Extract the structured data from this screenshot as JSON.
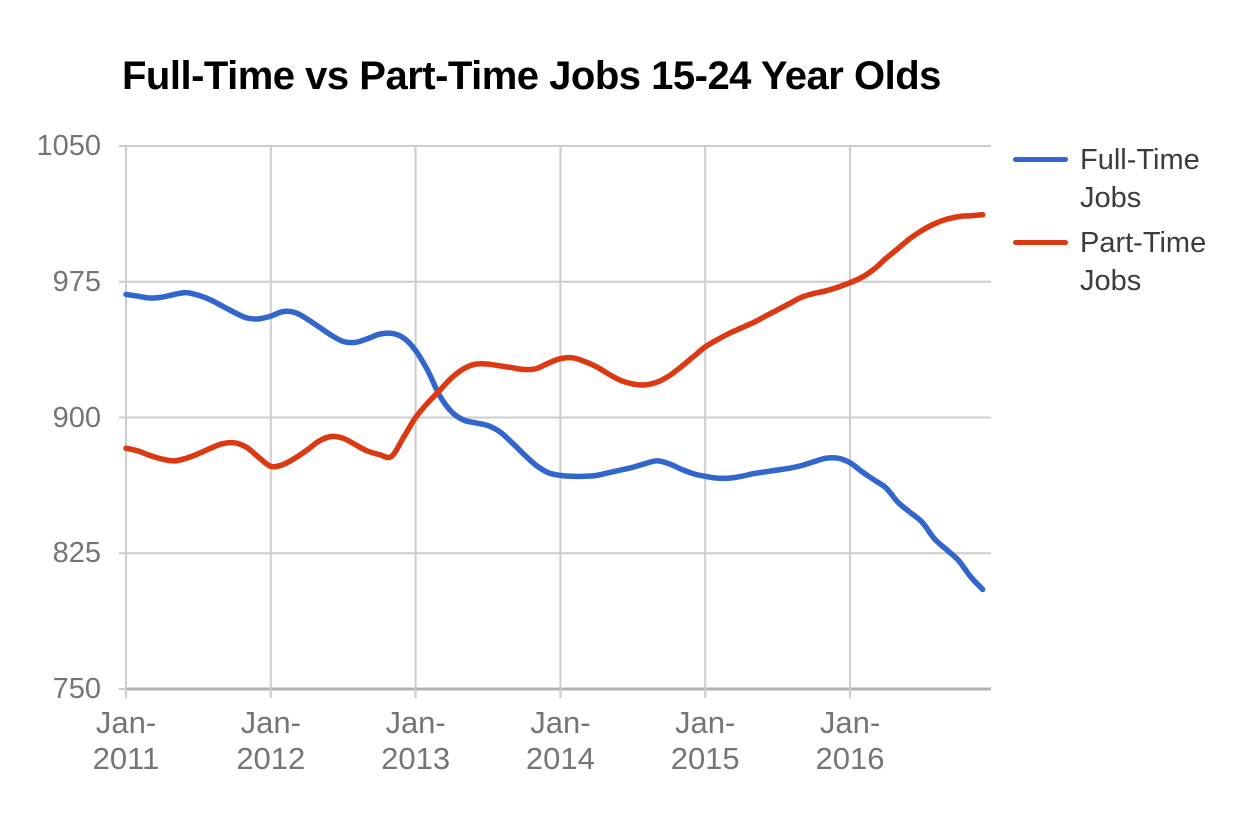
{
  "title": "Full-Time vs Part-Time Jobs 15-24 Year Olds",
  "legend": {
    "position": "right",
    "items": [
      {
        "label": "Full-Time Jobs",
        "color": "#3366cc"
      },
      {
        "label": "Part-Time Jobs",
        "color": "#dc3912"
      }
    ]
  },
  "colors": {
    "background": "#ffffff",
    "title": "#000000",
    "grid": "#cccccc",
    "axis": "#b0b0b0",
    "tick_label": "#757575",
    "legend_text": "#3c3c3c",
    "full_time_line": "#3366cc",
    "part_time_line": "#dc3912"
  },
  "chart_data": {
    "type": "line",
    "title": "Full-Time vs Part-Time Jobs 15-24 Year Olds",
    "xlabel": "",
    "ylabel": "",
    "x_interval": "monthly",
    "x_start": "Jan 2011",
    "x_end": "Dec 2016",
    "ylim": [
      750,
      1050
    ],
    "yticks": [
      1050,
      975,
      900,
      825,
      750
    ],
    "xticks": [
      {
        "line1": "Jan-",
        "line2": "2011",
        "month_index": 0
      },
      {
        "line1": "Jan-",
        "line2": "2012",
        "month_index": 12
      },
      {
        "line1": "Jan-",
        "line2": "2013",
        "month_index": 24
      },
      {
        "line1": "Jan-",
        "line2": "2014",
        "month_index": 36
      },
      {
        "line1": "Jan-",
        "line2": "2015",
        "month_index": 48
      },
      {
        "line1": "Jan-",
        "line2": "2016",
        "month_index": 60
      }
    ],
    "grid": true,
    "legend_position": "right",
    "series": [
      {
        "name": "Full-Time Jobs",
        "color": "#3366cc",
        "values": [
          968,
          967,
          966,
          966.5,
          968,
          969,
          967.5,
          965,
          961.5,
          958,
          955,
          954.5,
          956,
          958.5,
          958,
          954.5,
          950,
          945.5,
          942,
          941.5,
          943.5,
          946,
          946.5,
          944,
          937,
          926,
          912,
          903,
          898.5,
          897,
          895.5,
          892,
          886,
          879.5,
          873.5,
          869.5,
          868,
          867.5,
          867.5,
          868,
          869.5,
          871,
          872.5,
          874.5,
          876,
          874.5,
          871.5,
          869,
          867.5,
          866.5,
          866.5,
          867.5,
          869,
          870,
          871,
          872,
          873.5,
          875.5,
          877.5,
          877.5,
          875,
          870,
          865.5,
          861,
          853,
          847.5,
          842,
          833,
          827,
          821,
          812,
          805
        ]
      },
      {
        "name": "Part-Time Jobs",
        "color": "#dc3912",
        "values": [
          883,
          881.5,
          879,
          877,
          876,
          877.5,
          880,
          883,
          885.5,
          886,
          883.5,
          878,
          873,
          874,
          877.5,
          882,
          887,
          889.5,
          888.5,
          885,
          881.5,
          879.5,
          878.5,
          889,
          900,
          908,
          915,
          922,
          927,
          929.5,
          929.5,
          928.5,
          927.5,
          926.5,
          927,
          930,
          932.5,
          933,
          931,
          928,
          924,
          920.5,
          918.5,
          918,
          919.5,
          923,
          928,
          933.5,
          939,
          943,
          946.5,
          949.5,
          952.5,
          956,
          959.5,
          963,
          966.5,
          968.5,
          970,
          972,
          974.5,
          977.5,
          982,
          988,
          993.5,
          999,
          1003.5,
          1007,
          1009.5,
          1011,
          1011.5,
          1012
        ]
      }
    ]
  }
}
